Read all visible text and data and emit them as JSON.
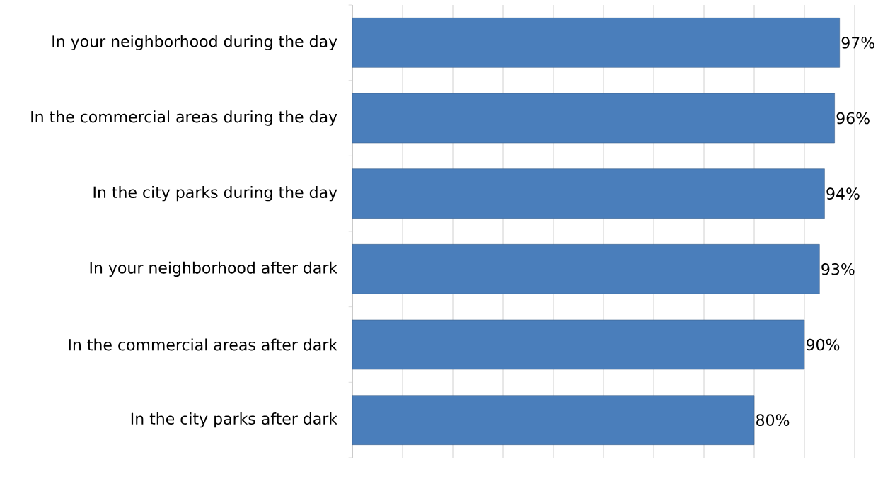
{
  "chart_data": {
    "type": "bar",
    "orientation": "horizontal",
    "categories": [
      "In your neighborhood during the day",
      "In the commercial areas during the day",
      "In the city parks during the day",
      "In your neighborhood after dark",
      "In the commercial areas after dark",
      "In the city parks after dark"
    ],
    "values": [
      97,
      96,
      94,
      93,
      90,
      80
    ],
    "value_labels": [
      "97%",
      "96%",
      "94%",
      "93%",
      "90%",
      "80%"
    ],
    "color": "#4a7ebb",
    "xlim": [
      0,
      100
    ],
    "xticks": [
      {
        "value": 0,
        "label": null
      },
      {
        "value": 10,
        "label": null
      },
      {
        "value": 20,
        "label": null
      },
      {
        "value": 30,
        "label": null
      },
      {
        "value": 40,
        "label": null
      },
      {
        "value": 50,
        "label": null
      },
      {
        "value": 60,
        "label": null
      },
      {
        "value": 70,
        "label": null
      },
      {
        "value": 80,
        "label": null
      },
      {
        "value": 90,
        "label": null
      },
      {
        "value": 100,
        "label": null
      }
    ],
    "grid": "x",
    "tick_labels": "y"
  }
}
